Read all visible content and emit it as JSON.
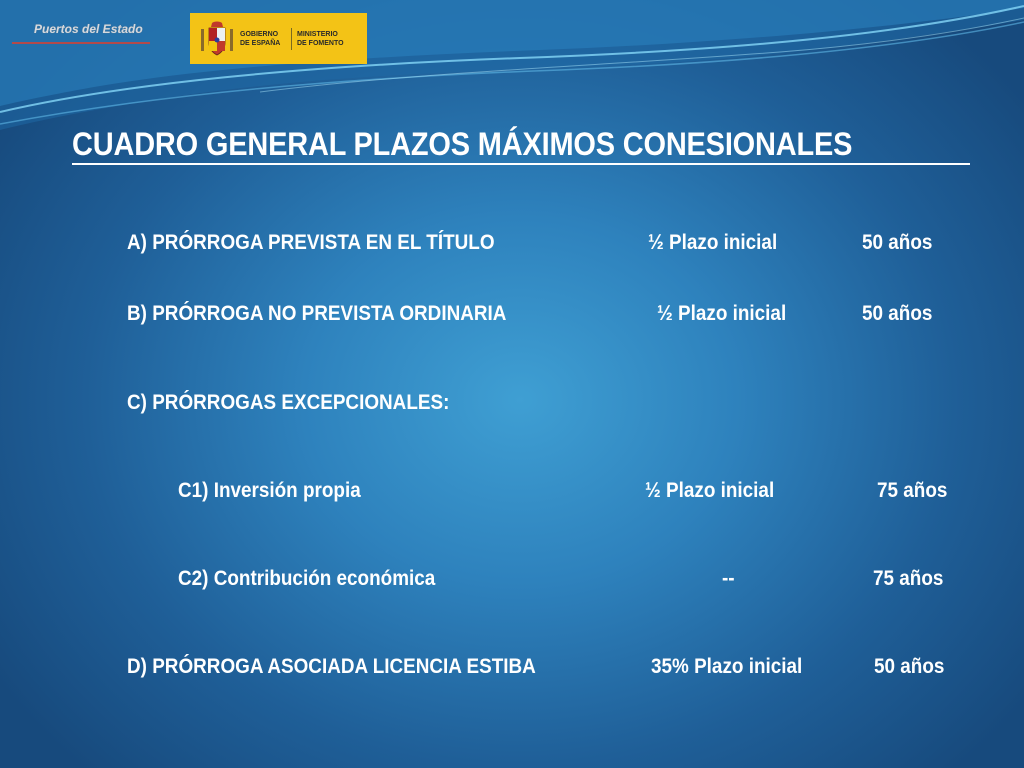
{
  "header": {
    "puertos_logo_text": "Puertos del Estado",
    "gov_logo": {
      "left_lines": [
        "GOBIERNO",
        "DE ESPAÑA"
      ],
      "right_lines": [
        "MINISTERIO",
        "DE FOMENTO"
      ],
      "background": "#f3c316"
    }
  },
  "title": "CUADRO GENERAL PLAZOS MÁXIMOS CONESIONALES",
  "rows": {
    "a": {
      "label": "A) PRÓRROGA PREVISTA EN EL TÍTULO",
      "plazo": "½ Plazo inicial",
      "max": "50 años"
    },
    "b": {
      "label": "B) PRÓRROGA NO PREVISTA ORDINARIA",
      "plazo": "½ Plazo inicial",
      "max": "50 años"
    },
    "c": {
      "label": "C) PRÓRROGAS EXCEPCIONALES:"
    },
    "c1": {
      "label": "C1) Inversión propia",
      "plazo": "½ Plazo inicial",
      "max": "75 años"
    },
    "c2": {
      "label": "C2) Contribución económica",
      "plazo": "--",
      "max": "75 años"
    },
    "d": {
      "label": "D) PRÓRROGA ASOCIADA LICENCIA ESTIBA",
      "plazo": "35% Plazo inicial",
      "max": "50 años"
    }
  },
  "colors": {
    "background_center": "#3f9fd3",
    "background_edge": "#174a7d",
    "text": "#ffffff"
  }
}
